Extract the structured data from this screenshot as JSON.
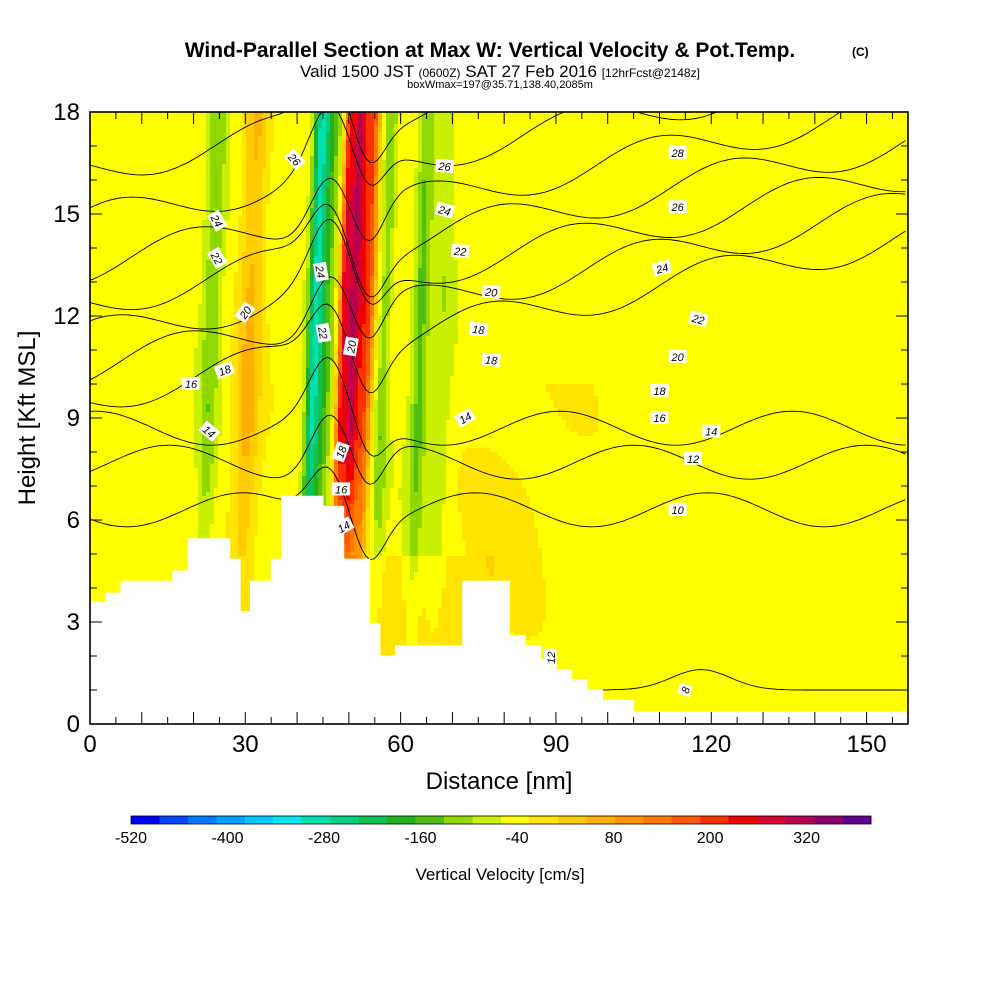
{
  "chart_data": {
    "type": "heatmap",
    "title": "Wind-Parallel Section at Max W: Vertical Velocity & Pot.Temp.",
    "title_mark": "(C)",
    "subtitle": {
      "valid": "Valid 1500 JST",
      "utc": "(0600Z)",
      "date": "SAT 27 Feb 2016",
      "fcst": "[12hrFcst@2148z]"
    },
    "box_info": "boxWmax=197@35.71,138.40,2085m",
    "xlabel": "Distance [nm]",
    "ylabel": "Height [Kft MSL]",
    "xlim": [
      0,
      158
    ],
    "ylim": [
      0,
      18
    ],
    "x_ticks": [
      0,
      30,
      60,
      90,
      120,
      150
    ],
    "y_ticks": [
      0,
      3,
      6,
      9,
      12,
      15,
      18
    ],
    "colorbar": {
      "title": "Vertical Velocity [cm/s]",
      "range": [
        -520,
        400
      ],
      "step": 40,
      "tick_labels": [
        "-520",
        "-400",
        "-280",
        "-160",
        "-40",
        "80",
        "200",
        "320"
      ],
      "tick_values": [
        -520,
        -400,
        -280,
        -160,
        -40,
        80,
        200,
        320
      ],
      "colors": [
        "#0000ff",
        "#0044ff",
        "#0077ff",
        "#00a2ff",
        "#00c8ff",
        "#00e8f0",
        "#00e0b0",
        "#00d080",
        "#10c050",
        "#20b020",
        "#50c010",
        "#90d800",
        "#c8f000",
        "#ffff00",
        "#ffe400",
        "#ffcc00",
        "#ffb000",
        "#ff9400",
        "#ff7800",
        "#ff5a00",
        "#ff3000",
        "#f00000",
        "#d80030",
        "#b80050",
        "#900070",
        "#600090"
      ]
    },
    "velocity_features": [
      {
        "x": 23.5,
        "w": 1.8,
        "value": -90
      },
      {
        "x": 31,
        "w": 2.5,
        "value": 110
      },
      {
        "x": 43.5,
        "w": 1.4,
        "value": -240
      },
      {
        "x": 45.5,
        "w": 1.8,
        "value": -130
      },
      {
        "x": 49,
        "w": 1.0,
        "value": 260
      },
      {
        "x": 51,
        "w": 1.5,
        "value": 380
      },
      {
        "x": 53.5,
        "w": 1.5,
        "value": 250
      },
      {
        "x": 57,
        "w": 1.3,
        "value": -90
      },
      {
        "x": 64,
        "w": 1.6,
        "value": -110
      },
      {
        "x": 68,
        "w": 2.0,
        "value": -50
      }
    ],
    "terrain_kft": [
      [
        0,
        3.6
      ],
      [
        3,
        3.85
      ],
      [
        6,
        4.2
      ],
      [
        12,
        4.2
      ],
      [
        16,
        4.5
      ],
      [
        19,
        5.45
      ],
      [
        25,
        5.45
      ],
      [
        27,
        4.85
      ],
      [
        29,
        3.3
      ],
      [
        31,
        4.2
      ],
      [
        35,
        4.85
      ],
      [
        37,
        6.7
      ],
      [
        44,
        6.7
      ],
      [
        45,
        6.4
      ],
      [
        48,
        6.4
      ],
      [
        49,
        4.85
      ],
      [
        52,
        4.85
      ],
      [
        54,
        2.95
      ],
      [
        56,
        2.0
      ],
      [
        59,
        2.3
      ],
      [
        68,
        2.3
      ],
      [
        72,
        4.2
      ],
      [
        78,
        4.2
      ],
      [
        81,
        2.6
      ],
      [
        84,
        2.3
      ],
      [
        87,
        1.9
      ],
      [
        90,
        1.6
      ],
      [
        93,
        1.3
      ],
      [
        96,
        1.0
      ],
      [
        99,
        0.7
      ],
      [
        103,
        0.7
      ],
      [
        105,
        0.35
      ],
      [
        158,
        0.35
      ]
    ],
    "theta_contours": [
      {
        "level": 8,
        "base_kft": 1.0
      },
      {
        "level": 10,
        "base_kft": 6.3
      },
      {
        "level": 12,
        "base_kft": 7.7
      },
      {
        "level": 14,
        "base_kft": 8.7
      },
      {
        "level": 16,
        "base_kft": 9.6
      },
      {
        "level": 18,
        "base_kft": 10.5
      },
      {
        "level": 20,
        "base_kft": 11.4
      },
      {
        "level": 22,
        "base_kft": 12.4
      },
      {
        "level": 24,
        "base_kft": 13.5
      },
      {
        "level": 26,
        "base_kft": 14.8
      },
      {
        "level": 28,
        "base_kft": 16.3
      }
    ],
    "contour_labels": [
      {
        "text": "26",
        "x": 39.5,
        "y": 16.6,
        "rot": 48
      },
      {
        "text": "24",
        "x": 24.5,
        "y": 14.8,
        "rot": 60
      },
      {
        "text": "22",
        "x": 24.5,
        "y": 13.7,
        "rot": 60
      },
      {
        "text": "20",
        "x": 30,
        "y": 12.1,
        "rot": -55
      },
      {
        "text": "18",
        "x": 26,
        "y": 10.4,
        "rot": -20
      },
      {
        "text": "16",
        "x": 19.5,
        "y": 10.0,
        "rot": 0
      },
      {
        "text": "14",
        "x": 23,
        "y": 8.6,
        "rot": 40
      },
      {
        "text": "24",
        "x": 44.5,
        "y": 13.3,
        "rot": 80
      },
      {
        "text": "22",
        "x": 45,
        "y": 11.5,
        "rot": 80
      },
      {
        "text": "20",
        "x": 50.5,
        "y": 11.1,
        "rot": -80
      },
      {
        "text": "18",
        "x": 48.5,
        "y": 8.0,
        "rot": -70
      },
      {
        "text": "16",
        "x": 48.5,
        "y": 6.9,
        "rot": 0
      },
      {
        "text": "14",
        "x": 49,
        "y": 5.8,
        "rot": -30
      },
      {
        "text": "26",
        "x": 68.5,
        "y": 16.4,
        "rot": 5
      },
      {
        "text": "24",
        "x": 68.5,
        "y": 15.1,
        "rot": 15
      },
      {
        "text": "22",
        "x": 71.5,
        "y": 13.9,
        "rot": 5
      },
      {
        "text": "20",
        "x": 77.5,
        "y": 12.7,
        "rot": 5
      },
      {
        "text": "18",
        "x": 75,
        "y": 11.6,
        "rot": 5
      },
      {
        "text": "18",
        "x": 77.5,
        "y": 10.7,
        "rot": 5
      },
      {
        "text": "14",
        "x": 72.5,
        "y": 9.0,
        "rot": -30
      },
      {
        "text": "12",
        "x": 89,
        "y": 1.95,
        "rot": -90
      },
      {
        "text": "28",
        "x": 113.5,
        "y": 16.8,
        "rot": 0
      },
      {
        "text": "26",
        "x": 113.5,
        "y": 15.2,
        "rot": 0
      },
      {
        "text": "24",
        "x": 110.5,
        "y": 13.4,
        "rot": -15
      },
      {
        "text": "22",
        "x": 117.5,
        "y": 11.9,
        "rot": 15
      },
      {
        "text": "20",
        "x": 113.5,
        "y": 10.8,
        "rot": 0
      },
      {
        "text": "18",
        "x": 110,
        "y": 9.8,
        "rot": 0
      },
      {
        "text": "16",
        "x": 110,
        "y": 9.0,
        "rot": 0
      },
      {
        "text": "14",
        "x": 120,
        "y": 8.6,
        "rot": 0
      },
      {
        "text": "12",
        "x": 116.5,
        "y": 7.8,
        "rot": 0
      },
      {
        "text": "10",
        "x": 113.5,
        "y": 6.3,
        "rot": 0
      },
      {
        "text": "8",
        "x": 115,
        "y": 1.0,
        "rot": -70
      }
    ]
  }
}
